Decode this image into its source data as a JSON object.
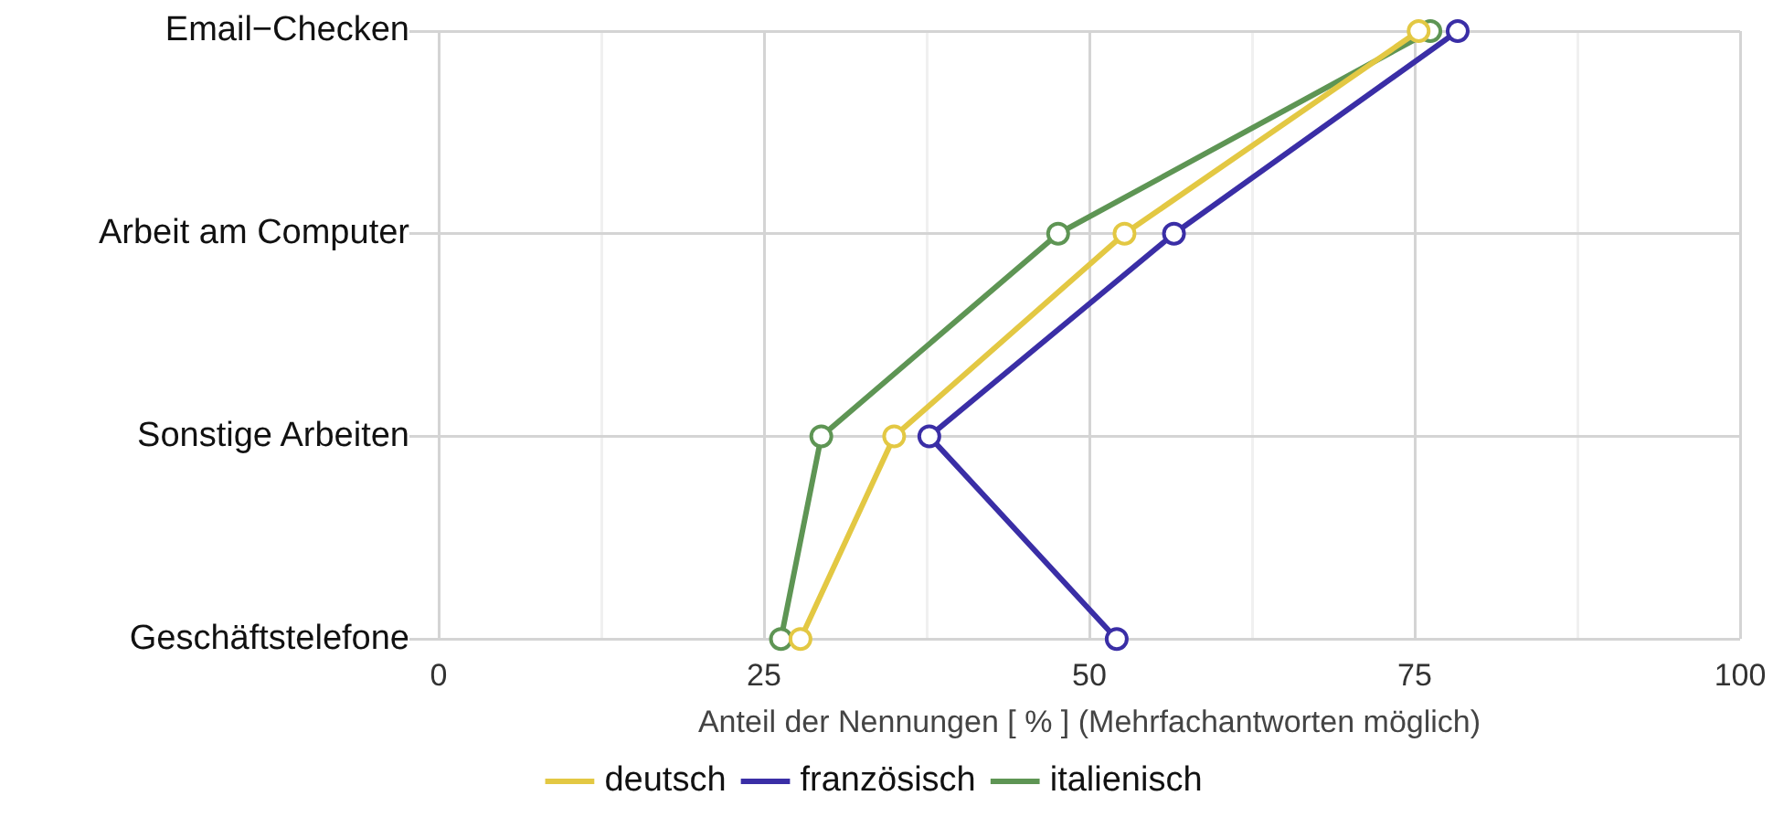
{
  "chart_data": {
    "type": "line",
    "orientation": "horizontal",
    "xlabel": "Anteil der Nennungen [ % ] (Mehrfachantworten möglich)",
    "categories": [
      "Email−Checken",
      "Arbeit am Computer",
      "Sonstige Arbeiten",
      "Geschäftstelefone"
    ],
    "xlim": [
      0,
      100
    ],
    "xticks": [
      0,
      {
        "value": 12.5,
        "label": null
      },
      25,
      {
        "value": 37.5,
        "label": null
      },
      50,
      {
        "value": 62.5,
        "label": null
      },
      75,
      {
        "value": 87.5,
        "label": null
      },
      100
    ],
    "grid": true,
    "legend": "bottom",
    "marker": "circle",
    "line_style": "solid",
    "series": [
      {
        "name": "deutsch",
        "color": "#e3c843",
        "values": [
          75.3,
          52.7,
          35.0,
          27.8
        ]
      },
      {
        "name": "französisch",
        "color": "#3a2ea6",
        "values": [
          78.3,
          56.5,
          37.7,
          52.1
        ]
      },
      {
        "name": "italienisch",
        "color": "#5e9554",
        "values": [
          76.2,
          47.6,
          29.4,
          26.3
        ]
      }
    ]
  }
}
